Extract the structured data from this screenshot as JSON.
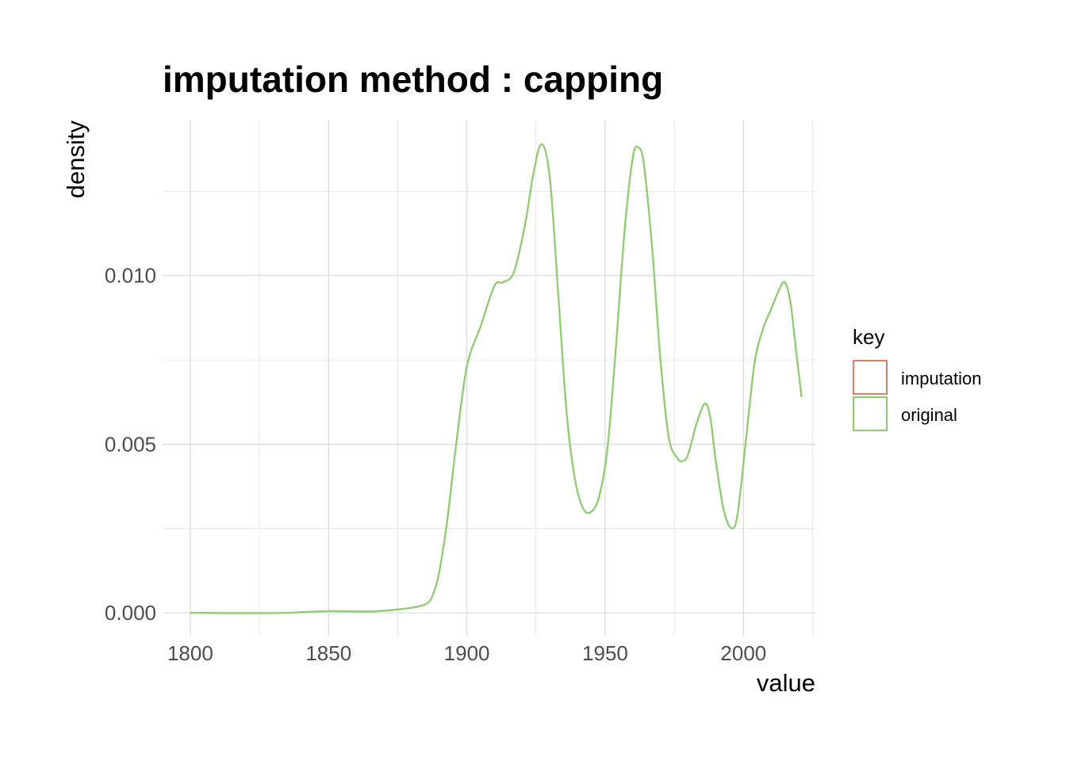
{
  "chart_data": {
    "type": "line",
    "title": "imputation method : capping",
    "xlabel": "value",
    "ylabel": "density",
    "xlim": [
      1790,
      2026
    ],
    "ylim": [
      -0.00068,
      0.0146
    ],
    "x_ticks": [
      1800,
      1850,
      1900,
      1950,
      2000
    ],
    "x_tick_labels": [
      "1800",
      "1850",
      "1900",
      "1950",
      "2000"
    ],
    "y_ticks": [
      0.0,
      0.005,
      0.01
    ],
    "y_tick_labels": [
      "0.000",
      "0.005",
      "0.010"
    ],
    "grid": true,
    "legend": {
      "title": "key",
      "position": "right",
      "entries": [
        {
          "label": "imputation",
          "color": "#D08770"
        },
        {
          "label": "original",
          "color": "#93CB77"
        }
      ]
    },
    "series": [
      {
        "name": "imputation",
        "color": "#D08770",
        "x": [],
        "y": []
      },
      {
        "name": "original",
        "color": "#93CB77",
        "x": [
          1800,
          1820,
          1835,
          1850,
          1865,
          1875,
          1882,
          1886,
          1888,
          1890,
          1893,
          1896,
          1900,
          1905,
          1910,
          1913,
          1917,
          1921,
          1924,
          1927,
          1930,
          1933,
          1936,
          1939,
          1942,
          1945,
          1948,
          1951,
          1954,
          1957,
          1960,
          1962,
          1964,
          1967,
          1970,
          1973,
          1976,
          1978,
          1980,
          1983,
          1986,
          1988,
          1990,
          1993,
          1996,
          1998,
          2001,
          2004,
          2007,
          2010,
          2013,
          2015,
          2017,
          2019,
          2021
        ],
        "y": [
          0.0,
          -1e-05,
          0.0,
          5e-05,
          4e-05,
          0.0001,
          0.00018,
          0.0003,
          0.0006,
          0.0012,
          0.0028,
          0.0049,
          0.0073,
          0.0085,
          0.0097,
          0.0098,
          0.0101,
          0.0115,
          0.013,
          0.0139,
          0.0129,
          0.0095,
          0.006,
          0.004,
          0.0031,
          0.003,
          0.0035,
          0.005,
          0.008,
          0.0113,
          0.0135,
          0.0138,
          0.0133,
          0.0108,
          0.0075,
          0.0052,
          0.0046,
          0.0045,
          0.0047,
          0.0056,
          0.0062,
          0.0058,
          0.0045,
          0.003,
          0.0025,
          0.003,
          0.0052,
          0.0074,
          0.0084,
          0.009,
          0.0096,
          0.0098,
          0.0092,
          0.0078,
          0.0064
        ]
      }
    ]
  }
}
